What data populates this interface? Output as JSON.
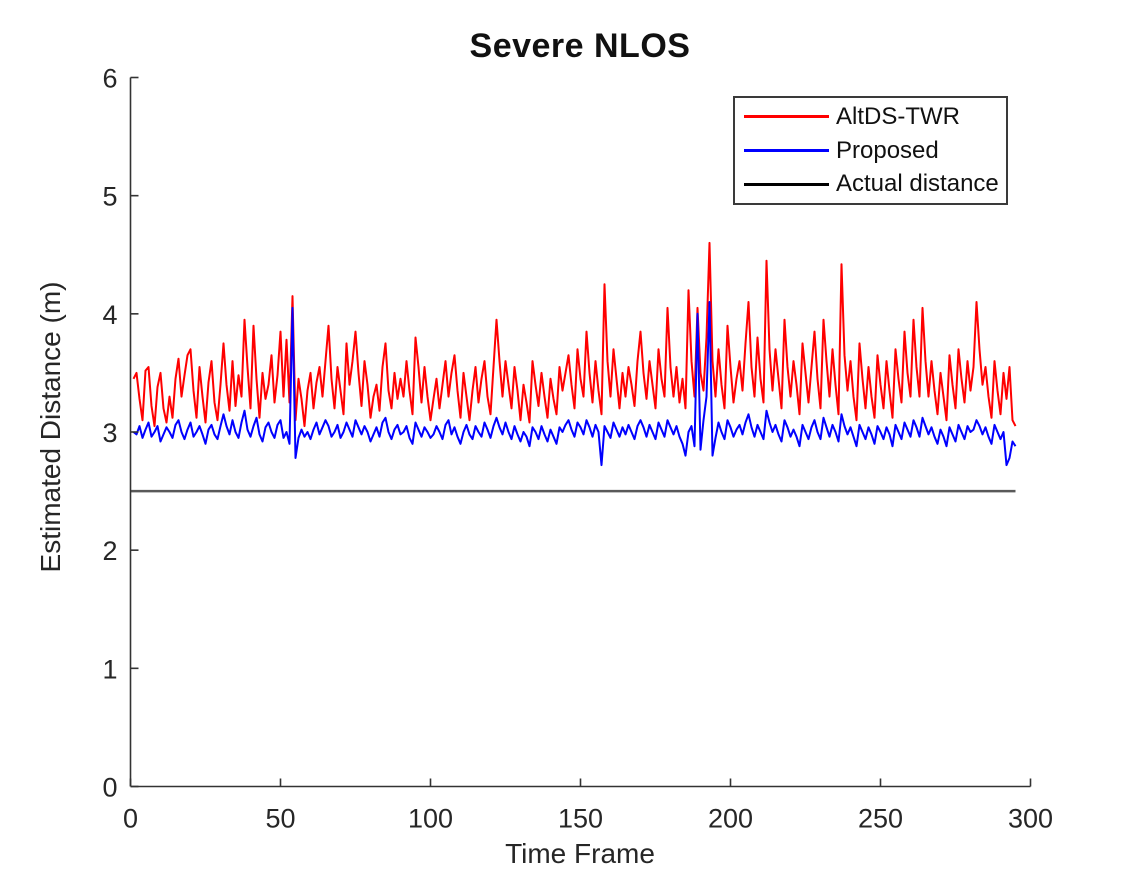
{
  "chart_data": {
    "type": "line",
    "title": "Severe NLOS",
    "xlabel": "Time Frame",
    "ylabel": "Estimated Distance (m)",
    "xlim": [
      0,
      300
    ],
    "ylim": [
      0,
      6
    ],
    "xticks": [
      0,
      50,
      100,
      150,
      200,
      250,
      300
    ],
    "yticks": [
      0,
      1,
      2,
      3,
      4,
      5,
      6
    ],
    "grid": false,
    "box": false,
    "tick_direction": "in",
    "axis_color": "#333333",
    "legend_position": "upper right",
    "legend": [
      {
        "label": "AltDS-TWR",
        "color": "#ff0000"
      },
      {
        "label": "Proposed",
        "color": "#0000ff"
      },
      {
        "label": "Actual distance",
        "color": "#000000"
      }
    ],
    "series": [
      {
        "name": "AltDS-TWR",
        "color": "#ff0000",
        "line_width": 2,
        "x_start": 1,
        "x_step": 1,
        "values": [
          3.45,
          3.5,
          3.28,
          3.1,
          3.52,
          3.55,
          3.22,
          3.05,
          3.38,
          3.5,
          3.2,
          3.08,
          3.3,
          3.12,
          3.45,
          3.62,
          3.3,
          3.48,
          3.65,
          3.7,
          3.35,
          3.12,
          3.55,
          3.3,
          3.08,
          3.42,
          3.6,
          3.25,
          3.1,
          3.4,
          3.75,
          3.4,
          3.18,
          3.6,
          3.22,
          3.48,
          3.3,
          3.95,
          3.55,
          3.2,
          3.9,
          3.45,
          3.12,
          3.5,
          3.28,
          3.4,
          3.65,
          3.25,
          3.48,
          3.85,
          3.3,
          3.78,
          3.25,
          4.15,
          3.1,
          3.45,
          3.28,
          3.05,
          3.35,
          3.5,
          3.2,
          3.42,
          3.55,
          3.3,
          3.6,
          3.9,
          3.45,
          3.2,
          3.55,
          3.35,
          3.15,
          3.75,
          3.4,
          3.6,
          3.85,
          3.5,
          3.22,
          3.6,
          3.4,
          3.12,
          3.3,
          3.4,
          3.18,
          3.55,
          3.75,
          3.35,
          3.2,
          3.5,
          3.28,
          3.45,
          3.3,
          3.6,
          3.35,
          3.15,
          3.8,
          3.55,
          3.25,
          3.55,
          3.3,
          3.1,
          3.28,
          3.45,
          3.2,
          3.4,
          3.6,
          3.3,
          3.5,
          3.65,
          3.35,
          3.12,
          3.5,
          3.3,
          3.1,
          3.35,
          3.55,
          3.25,
          3.45,
          3.6,
          3.3,
          3.15,
          3.55,
          3.95,
          3.6,
          3.3,
          3.6,
          3.4,
          3.2,
          3.55,
          3.35,
          3.1,
          3.4,
          3.25,
          3.08,
          3.6,
          3.4,
          3.22,
          3.5,
          3.3,
          3.12,
          3.45,
          3.28,
          3.15,
          3.55,
          3.35,
          3.5,
          3.65,
          3.4,
          3.2,
          3.7,
          3.45,
          3.3,
          3.85,
          3.5,
          3.25,
          3.6,
          3.35,
          3.15,
          4.25,
          3.6,
          3.3,
          3.7,
          3.45,
          3.2,
          3.5,
          3.3,
          3.55,
          3.4,
          3.22,
          3.6,
          3.85,
          3.5,
          3.28,
          3.6,
          3.4,
          3.2,
          3.7,
          3.45,
          3.3,
          4.05,
          3.55,
          3.3,
          3.55,
          3.25,
          3.45,
          3.2,
          4.2,
          3.6,
          3.3,
          4.05,
          3.5,
          3.35,
          3.8,
          4.6,
          3.6,
          3.3,
          3.7,
          3.4,
          3.2,
          3.9,
          3.55,
          3.25,
          3.45,
          3.6,
          3.35,
          3.75,
          4.1,
          3.55,
          3.3,
          3.8,
          3.45,
          3.25,
          4.45,
          3.7,
          3.35,
          3.7,
          3.45,
          3.2,
          3.95,
          3.55,
          3.3,
          3.6,
          3.4,
          3.15,
          3.75,
          3.5,
          3.25,
          3.55,
          3.85,
          3.45,
          3.2,
          3.95,
          3.6,
          3.3,
          3.7,
          3.4,
          3.15,
          4.42,
          3.65,
          3.35,
          3.6,
          3.3,
          3.1,
          3.75,
          3.45,
          3.2,
          3.55,
          3.3,
          3.12,
          3.65,
          3.4,
          3.2,
          3.6,
          3.35,
          3.12,
          3.7,
          3.45,
          3.25,
          3.85,
          3.5,
          3.3,
          3.95,
          3.55,
          3.3,
          4.05,
          3.6,
          3.3,
          3.6,
          3.35,
          3.15,
          3.5,
          3.3,
          3.1,
          3.65,
          3.4,
          3.2,
          3.7,
          3.45,
          3.25,
          3.6,
          3.35,
          3.55,
          4.1,
          3.7,
          3.4,
          3.55,
          3.3,
          3.12,
          3.6,
          3.35,
          3.15,
          3.5,
          3.28,
          3.55,
          3.1,
          3.05
        ]
      },
      {
        "name": "Proposed",
        "color": "#0000ff",
        "line_width": 2,
        "x_start": 1,
        "x_step": 1,
        "values": [
          3.0,
          2.98,
          3.05,
          2.95,
          3.02,
          3.08,
          2.96,
          3.0,
          3.05,
          2.92,
          2.98,
          3.04,
          3.0,
          2.95,
          3.06,
          3.1,
          3.0,
          2.94,
          3.02,
          3.08,
          2.96,
          3.0,
          3.05,
          2.98,
          2.9,
          3.02,
          3.06,
          2.98,
          2.94,
          3.05,
          3.15,
          3.05,
          2.98,
          3.1,
          3.0,
          2.95,
          3.08,
          3.18,
          3.02,
          2.96,
          3.05,
          3.12,
          2.98,
          2.92,
          3.04,
          3.08,
          3.0,
          2.95,
          3.06,
          3.1,
          2.95,
          3.0,
          2.9,
          4.05,
          2.78,
          2.95,
          3.02,
          2.96,
          3.0,
          2.94,
          3.02,
          3.08,
          2.98,
          3.04,
          3.1,
          3.05,
          2.96,
          3.0,
          3.06,
          2.95,
          3.0,
          3.08,
          3.02,
          2.96,
          3.1,
          3.04,
          2.98,
          3.05,
          3.0,
          2.92,
          2.98,
          3.04,
          2.96,
          3.08,
          3.12,
          3.0,
          2.94,
          3.02,
          3.06,
          2.98,
          3.0,
          3.05,
          2.95,
          2.9,
          3.08,
          3.02,
          2.96,
          3.04,
          3.0,
          2.95,
          2.98,
          3.05,
          3.0,
          2.94,
          3.06,
          3.1,
          2.98,
          3.04,
          2.96,
          2.9,
          3.0,
          3.06,
          2.98,
          2.94,
          3.05,
          3.0,
          2.96,
          3.08,
          3.02,
          2.95,
          3.05,
          3.12,
          3.04,
          2.98,
          3.08,
          3.0,
          2.94,
          3.05,
          2.98,
          2.92,
          3.0,
          2.96,
          2.88,
          3.04,
          3.0,
          2.94,
          3.05,
          2.98,
          2.92,
          3.02,
          2.96,
          2.9,
          3.04,
          3.0,
          3.06,
          3.1,
          3.02,
          2.96,
          3.08,
          3.04,
          2.98,
          3.1,
          3.04,
          2.96,
          3.06,
          3.0,
          2.72,
          3.05,
          3.0,
          2.95,
          3.08,
          3.02,
          2.96,
          3.04,
          2.98,
          3.06,
          3.0,
          2.94,
          3.05,
          3.1,
          3.04,
          2.96,
          3.06,
          3.0,
          2.94,
          3.08,
          3.02,
          2.96,
          3.1,
          3.04,
          2.98,
          3.05,
          2.96,
          2.9,
          2.8,
          3.0,
          3.05,
          2.88,
          4.0,
          2.85,
          3.1,
          3.3,
          4.1,
          2.8,
          2.95,
          3.08,
          3.0,
          2.94,
          3.1,
          3.04,
          2.96,
          3.02,
          3.06,
          2.98,
          3.08,
          3.15,
          3.04,
          2.96,
          3.06,
          3.0,
          2.94,
          3.18,
          3.08,
          3.0,
          3.06,
          2.98,
          2.92,
          3.1,
          3.04,
          2.96,
          3.02,
          2.96,
          2.88,
          3.06,
          3.0,
          2.94,
          3.04,
          3.1,
          3.0,
          2.94,
          3.12,
          3.04,
          2.96,
          3.06,
          3.0,
          2.92,
          3.15,
          3.05,
          2.98,
          3.04,
          2.96,
          2.88,
          3.06,
          3.0,
          2.94,
          3.04,
          2.98,
          2.9,
          3.05,
          3.0,
          2.94,
          3.04,
          2.98,
          2.88,
          3.06,
          3.0,
          2.94,
          3.08,
          3.02,
          2.96,
          3.1,
          3.04,
          2.96,
          3.12,
          3.05,
          2.98,
          3.04,
          2.96,
          2.9,
          3.02,
          2.96,
          2.88,
          3.04,
          2.98,
          2.92,
          3.06,
          3.0,
          2.94,
          3.05,
          3.0,
          3.02,
          3.1,
          3.05,
          2.98,
          3.04,
          2.96,
          2.9,
          3.06,
          3.0,
          2.94,
          3.0,
          2.72,
          2.78,
          2.92,
          2.88
        ]
      },
      {
        "name": "Actual distance",
        "color": "#000000",
        "plot_color": "#595959",
        "line_width": 2.5,
        "x": [
          0,
          295
        ],
        "values": [
          2.5,
          2.5
        ]
      }
    ]
  }
}
